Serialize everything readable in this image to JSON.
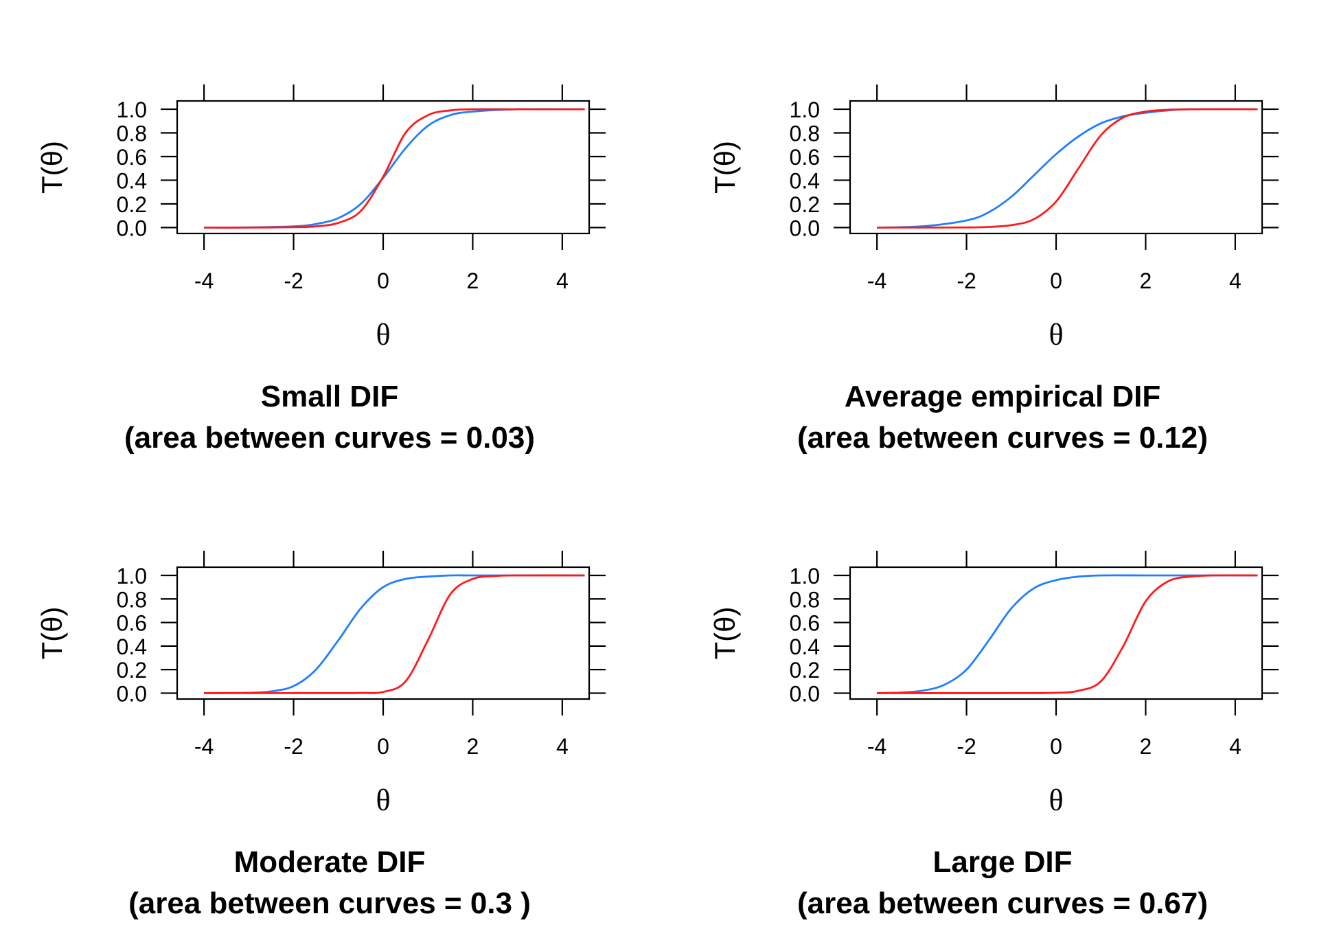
{
  "chart_data": [
    {
      "type": "line",
      "title": "Small DIF",
      "subtitle": "(area between curves = 0.03)",
      "xlabel": "θ",
      "ylabel": "T(θ)",
      "xlim": [
        -4.6,
        4.6
      ],
      "ylim": [
        -0.05,
        1.07
      ],
      "xticks": [
        "-4",
        "-2",
        "0",
        "2",
        "4"
      ],
      "yticks": [
        "0.0",
        "0.2",
        "0.4",
        "0.6",
        "0.8",
        "1.0"
      ],
      "grid": false,
      "series": [
        {
          "color": "#1E7FFF",
          "x": [
            -4,
            -3,
            -2,
            -1.5,
            -1,
            -0.5,
            0,
            0.5,
            1,
            1.5,
            2,
            3,
            4.5
          ],
          "y": [
            0.0,
            0.001,
            0.01,
            0.03,
            0.08,
            0.2,
            0.42,
            0.67,
            0.86,
            0.95,
            0.98,
            1.0,
            1.0
          ]
        },
        {
          "color": "#FF1A1A",
          "x": [
            -4,
            -3,
            -2,
            -1.5,
            -1,
            -0.5,
            0,
            0.5,
            1,
            1.5,
            2,
            3,
            4.5
          ],
          "y": [
            0.0,
            0.0,
            0.003,
            0.01,
            0.04,
            0.14,
            0.43,
            0.8,
            0.95,
            0.99,
            1.0,
            1.0,
            1.0
          ]
        }
      ]
    },
    {
      "type": "line",
      "title": "Average empirical DIF",
      "subtitle": "(area between curves  = 0.12)",
      "xlabel": "θ",
      "ylabel": "T(θ)",
      "xlim": [
        -4.6,
        4.6
      ],
      "ylim": [
        -0.05,
        1.07
      ],
      "xticks": [
        "-4",
        "-2",
        "0",
        "2",
        "4"
      ],
      "yticks": [
        "0.0",
        "0.2",
        "0.4",
        "0.6",
        "0.8",
        "1.0"
      ],
      "grid": false,
      "series": [
        {
          "color": "#1E7FFF",
          "x": [
            -4,
            -3,
            -2,
            -1.5,
            -1,
            -0.5,
            0,
            0.5,
            1,
            1.5,
            2,
            2.5,
            3,
            4.5
          ],
          "y": [
            0.0,
            0.01,
            0.06,
            0.13,
            0.26,
            0.44,
            0.62,
            0.77,
            0.88,
            0.94,
            0.97,
            0.99,
            1.0,
            1.0
          ]
        },
        {
          "color": "#FF1A1A",
          "x": [
            -4,
            -3,
            -2,
            -1.5,
            -1,
            -0.5,
            0,
            0.5,
            1,
            1.5,
            2,
            2.5,
            3,
            4.5
          ],
          "y": [
            0.0,
            0.0,
            0.001,
            0.005,
            0.02,
            0.07,
            0.22,
            0.5,
            0.78,
            0.93,
            0.98,
            0.995,
            1.0,
            1.0
          ]
        }
      ]
    },
    {
      "type": "line",
      "title": "Moderate DIF",
      "subtitle": "(area between curves = 0.3 )",
      "xlabel": "θ",
      "ylabel": "T(θ)",
      "xlim": [
        -4.6,
        4.6
      ],
      "ylim": [
        -0.05,
        1.07
      ],
      "xticks": [
        "-4",
        "-2",
        "0",
        "2",
        "4"
      ],
      "yticks": [
        "0.0",
        "0.2",
        "0.4",
        "0.6",
        "0.8",
        "1.0"
      ],
      "grid": false,
      "series": [
        {
          "color": "#1E7FFF",
          "x": [
            -4,
            -3,
            -2.5,
            -2,
            -1.5,
            -1,
            -0.5,
            0,
            0.5,
            1,
            1.5,
            2,
            3,
            4.5
          ],
          "y": [
            0.0,
            0.003,
            0.015,
            0.06,
            0.2,
            0.45,
            0.72,
            0.9,
            0.97,
            0.99,
            1.0,
            1.0,
            1.0,
            1.0
          ]
        },
        {
          "color": "#FF1A1A",
          "x": [
            -4,
            -2,
            -1,
            -0.5,
            0,
            0.5,
            1,
            1.5,
            2,
            2.5,
            3,
            4.5
          ],
          "y": [
            0.0,
            0.0,
            0.0,
            0.002,
            0.01,
            0.1,
            0.45,
            0.84,
            0.97,
            0.995,
            1.0,
            1.0
          ]
        }
      ]
    },
    {
      "type": "line",
      "title": "Large DIF",
      "subtitle": "(area between curves = 0.67)",
      "xlabel": "θ",
      "ylabel": "T(θ)",
      "xlim": [
        -4.6,
        4.6
      ],
      "ylim": [
        -0.05,
        1.07
      ],
      "xticks": [
        "-4",
        "-2",
        "0",
        "2",
        "4"
      ],
      "yticks": [
        "0.0",
        "0.2",
        "0.4",
        "0.6",
        "0.8",
        "1.0"
      ],
      "grid": false,
      "series": [
        {
          "color": "#1E7FFF",
          "x": [
            -4,
            -3.5,
            -3,
            -2.5,
            -2,
            -1.5,
            -1,
            -0.5,
            0,
            0.5,
            1,
            2,
            3,
            4.5
          ],
          "y": [
            0.0,
            0.005,
            0.02,
            0.07,
            0.2,
            0.45,
            0.72,
            0.89,
            0.96,
            0.99,
            1.0,
            1.0,
            1.0,
            1.0
          ]
        },
        {
          "color": "#FF1A1A",
          "x": [
            -4,
            -1,
            0,
            0.5,
            1,
            1.5,
            2,
            2.5,
            3,
            3.5,
            4.5
          ],
          "y": [
            0.0,
            0.0,
            0.003,
            0.02,
            0.1,
            0.4,
            0.78,
            0.95,
            0.99,
            1.0,
            1.0
          ]
        }
      ]
    }
  ]
}
